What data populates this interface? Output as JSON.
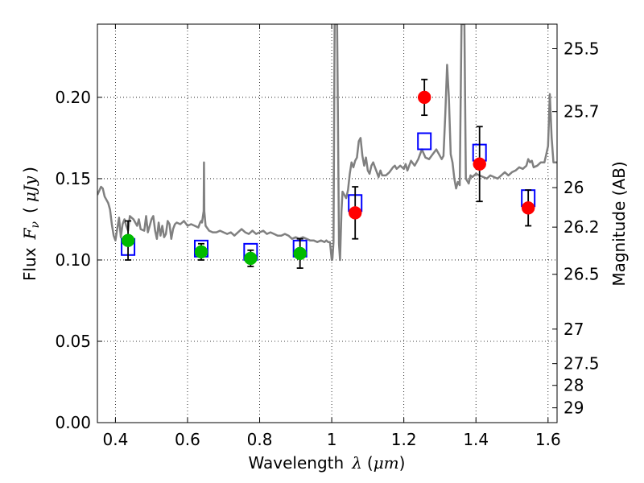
{
  "chart_data": {
    "type": "line",
    "title": "",
    "xlabel": {
      "text": "Wavelength",
      "symbol": "λ",
      "unit_open": "(",
      "unit": "μm",
      "unit_close": ")"
    },
    "ylabel": {
      "text": "Flux",
      "symbol": "F",
      "subscript": "ν",
      "unit_open": "(",
      "unit": "μJy",
      "unit_close": ")"
    },
    "ylabel_right": "Magnitude (AB)",
    "xlim": [
      0.35,
      1.625
    ],
    "ylim": [
      0.0,
      0.245
    ],
    "grid": true,
    "x_ticks": [
      {
        "value": 0.4,
        "label": "0.4"
      },
      {
        "value": 0.6,
        "label": "0.6"
      },
      {
        "value": 0.8,
        "label": "0.8"
      },
      {
        "value": 1.0,
        "label": "1"
      },
      {
        "value": 1.2,
        "label": "1.2"
      },
      {
        "value": 1.4,
        "label": "1.4"
      },
      {
        "value": 1.6,
        "label": "1.6"
      }
    ],
    "y_ticks": [
      {
        "value": 0.0,
        "label": "0.00"
      },
      {
        "value": 0.05,
        "label": "0.05"
      },
      {
        "value": 0.1,
        "label": "0.10"
      },
      {
        "value": 0.15,
        "label": "0.15"
      },
      {
        "value": 0.2,
        "label": "0.20"
      }
    ],
    "right_ticks": [
      {
        "flux": 0.2299,
        "label": "25.5"
      },
      {
        "flux": 0.1912,
        "label": "25.7"
      },
      {
        "flux": 0.1445,
        "label": "26"
      },
      {
        "flux": 0.1202,
        "label": "26.2"
      },
      {
        "flux": 0.0912,
        "label": "26.5"
      },
      {
        "flux": 0.0575,
        "label": "27"
      },
      {
        "flux": 0.0363,
        "label": "27.5"
      },
      {
        "flux": 0.0229,
        "label": "28"
      },
      {
        "flux": 0.0091,
        "label": "29"
      }
    ],
    "series": [
      {
        "style": "line",
        "color": "#808080",
        "points": [
          [
            0.35,
            0.14
          ],
          [
            0.36,
            0.145
          ],
          [
            0.365,
            0.144
          ],
          [
            0.37,
            0.139
          ],
          [
            0.375,
            0.137
          ],
          [
            0.38,
            0.135
          ],
          [
            0.385,
            0.131
          ],
          [
            0.39,
            0.122
          ],
          [
            0.395,
            0.115
          ],
          [
            0.4,
            0.112
          ],
          [
            0.405,
            0.119
          ],
          [
            0.41,
            0.126
          ],
          [
            0.415,
            0.114
          ],
          [
            0.42,
            0.122
          ],
          [
            0.425,
            0.125
          ],
          [
            0.43,
            0.121
          ],
          [
            0.435,
            0.118
          ],
          [
            0.44,
            0.127
          ],
          [
            0.45,
            0.125
          ],
          [
            0.46,
            0.121
          ],
          [
            0.465,
            0.125
          ],
          [
            0.47,
            0.119
          ],
          [
            0.48,
            0.118
          ],
          [
            0.485,
            0.127
          ],
          [
            0.49,
            0.117
          ],
          [
            0.5,
            0.125
          ],
          [
            0.505,
            0.127
          ],
          [
            0.51,
            0.118
          ],
          [
            0.515,
            0.113
          ],
          [
            0.52,
            0.123
          ],
          [
            0.525,
            0.115
          ],
          [
            0.53,
            0.121
          ],
          [
            0.535,
            0.114
          ],
          [
            0.54,
            0.116
          ],
          [
            0.545,
            0.124
          ],
          [
            0.55,
            0.122
          ],
          [
            0.555,
            0.113
          ],
          [
            0.56,
            0.119
          ],
          [
            0.565,
            0.122
          ],
          [
            0.57,
            0.123
          ],
          [
            0.58,
            0.122
          ],
          [
            0.59,
            0.124
          ],
          [
            0.6,
            0.121
          ],
          [
            0.61,
            0.122
          ],
          [
            0.62,
            0.121
          ],
          [
            0.63,
            0.12
          ],
          [
            0.635,
            0.123
          ],
          [
            0.638,
            0.124
          ],
          [
            0.64,
            0.123
          ],
          [
            0.6448,
            0.13
          ],
          [
            0.6456,
            0.16
          ],
          [
            0.6465,
            0.13
          ],
          [
            0.65,
            0.121
          ],
          [
            0.66,
            0.118
          ],
          [
            0.67,
            0.117
          ],
          [
            0.68,
            0.117
          ],
          [
            0.69,
            0.118
          ],
          [
            0.7,
            0.117
          ],
          [
            0.71,
            0.116
          ],
          [
            0.72,
            0.117
          ],
          [
            0.73,
            0.115
          ],
          [
            0.74,
            0.117
          ],
          [
            0.75,
            0.119
          ],
          [
            0.76,
            0.117
          ],
          [
            0.77,
            0.116
          ],
          [
            0.78,
            0.118
          ],
          [
            0.79,
            0.116
          ],
          [
            0.8,
            0.117
          ],
          [
            0.81,
            0.118
          ],
          [
            0.82,
            0.116
          ],
          [
            0.83,
            0.117
          ],
          [
            0.84,
            0.116
          ],
          [
            0.85,
            0.115
          ],
          [
            0.86,
            0.115
          ],
          [
            0.87,
            0.116
          ],
          [
            0.88,
            0.115
          ],
          [
            0.89,
            0.113
          ],
          [
            0.9,
            0.114
          ],
          [
            0.91,
            0.113
          ],
          [
            0.92,
            0.114
          ],
          [
            0.93,
            0.113
          ],
          [
            0.94,
            0.112
          ],
          [
            0.95,
            0.112
          ],
          [
            0.96,
            0.111
          ],
          [
            0.97,
            0.112
          ],
          [
            0.98,
            0.111
          ],
          [
            0.985,
            0.112
          ],
          [
            0.99,
            0.111
          ],
          [
            0.995,
            0.111
          ],
          [
            1.0,
            0.1
          ],
          [
            1.002,
            0.101
          ],
          [
            1.005,
            0.111
          ],
          [
            1.008,
            0.245
          ],
          [
            1.015,
            0.245
          ],
          [
            1.02,
            0.11
          ],
          [
            1.023,
            0.1
          ],
          [
            1.027,
            0.13
          ],
          [
            1.03,
            0.142
          ],
          [
            1.035,
            0.14
          ],
          [
            1.04,
            0.138
          ],
          [
            1.045,
            0.143
          ],
          [
            1.05,
            0.153
          ],
          [
            1.055,
            0.16
          ],
          [
            1.06,
            0.157
          ],
          [
            1.065,
            0.161
          ],
          [
            1.07,
            0.163
          ],
          [
            1.075,
            0.173
          ],
          [
            1.08,
            0.175
          ],
          [
            1.085,
            0.164
          ],
          [
            1.09,
            0.158
          ],
          [
            1.095,
            0.163
          ],
          [
            1.1,
            0.155
          ],
          [
            1.105,
            0.153
          ],
          [
            1.11,
            0.158
          ],
          [
            1.115,
            0.16
          ],
          [
            1.12,
            0.157
          ],
          [
            1.125,
            0.154
          ],
          [
            1.13,
            0.151
          ],
          [
            1.135,
            0.155
          ],
          [
            1.14,
            0.152
          ],
          [
            1.15,
            0.152
          ],
          [
            1.16,
            0.154
          ],
          [
            1.17,
            0.157
          ],
          [
            1.175,
            0.158
          ],
          [
            1.18,
            0.156
          ],
          [
            1.19,
            0.158
          ],
          [
            1.2,
            0.156
          ],
          [
            1.205,
            0.159
          ],
          [
            1.21,
            0.155
          ],
          [
            1.22,
            0.161
          ],
          [
            1.23,
            0.158
          ],
          [
            1.24,
            0.162
          ],
          [
            1.25,
            0.168
          ],
          [
            1.26,
            0.163
          ],
          [
            1.27,
            0.162
          ],
          [
            1.28,
            0.165
          ],
          [
            1.29,
            0.168
          ],
          [
            1.3,
            0.164
          ],
          [
            1.305,
            0.162
          ],
          [
            1.31,
            0.164
          ],
          [
            1.315,
            0.19
          ],
          [
            1.32,
            0.22
          ],
          [
            1.325,
            0.2
          ],
          [
            1.33,
            0.165
          ],
          [
            1.335,
            0.16
          ],
          [
            1.34,
            0.15
          ],
          [
            1.345,
            0.144
          ],
          [
            1.35,
            0.148
          ],
          [
            1.355,
            0.146
          ],
          [
            1.36,
            0.245
          ],
          [
            1.368,
            0.245
          ],
          [
            1.372,
            0.15
          ],
          [
            1.38,
            0.147
          ],
          [
            1.385,
            0.152
          ],
          [
            1.39,
            0.151
          ],
          [
            1.4,
            0.153
          ],
          [
            1.41,
            0.152
          ],
          [
            1.42,
            0.151
          ],
          [
            1.43,
            0.15
          ],
          [
            1.44,
            0.152
          ],
          [
            1.45,
            0.151
          ],
          [
            1.46,
            0.15
          ],
          [
            1.47,
            0.152
          ],
          [
            1.48,
            0.154
          ],
          [
            1.49,
            0.152
          ],
          [
            1.5,
            0.154
          ],
          [
            1.51,
            0.155
          ],
          [
            1.52,
            0.157
          ],
          [
            1.53,
            0.156
          ],
          [
            1.54,
            0.158
          ],
          [
            1.545,
            0.162
          ],
          [
            1.55,
            0.16
          ],
          [
            1.555,
            0.161
          ],
          [
            1.56,
            0.157
          ],
          [
            1.57,
            0.158
          ],
          [
            1.58,
            0.16
          ],
          [
            1.59,
            0.16
          ],
          [
            1.595,
            0.165
          ],
          [
            1.6,
            0.17
          ],
          [
            1.605,
            0.202
          ],
          [
            1.61,
            0.175
          ],
          [
            1.615,
            0.16
          ],
          [
            1.625,
            0.16
          ]
        ]
      },
      {
        "style": "open-square",
        "color": "#0000ff",
        "points": [
          [
            0.435,
            0.108
          ],
          [
            0.638,
            0.107
          ],
          [
            0.775,
            0.105
          ],
          [
            0.912,
            0.107
          ],
          [
            1.065,
            0.135
          ],
          [
            1.257,
            0.173
          ],
          [
            1.41,
            0.166
          ],
          [
            1.545,
            0.138
          ]
        ]
      },
      {
        "style": "filled-circle",
        "color": "#00bb00",
        "points": [
          {
            "x": 0.435,
            "y": 0.112,
            "err": 0.012
          },
          {
            "x": 0.638,
            "y": 0.105,
            "err": 0.005
          },
          {
            "x": 0.775,
            "y": 0.101,
            "err": 0.005
          },
          {
            "x": 0.912,
            "y": 0.104,
            "err": 0.009
          }
        ]
      },
      {
        "style": "filled-circle",
        "color": "#ff0000",
        "points": [
          {
            "x": 1.065,
            "y": 0.129,
            "err": 0.016
          },
          {
            "x": 1.257,
            "y": 0.2,
            "err": 0.011
          },
          {
            "x": 1.41,
            "y": 0.159,
            "err": 0.023
          },
          {
            "x": 1.545,
            "y": 0.132,
            "err": 0.011
          }
        ]
      }
    ]
  }
}
